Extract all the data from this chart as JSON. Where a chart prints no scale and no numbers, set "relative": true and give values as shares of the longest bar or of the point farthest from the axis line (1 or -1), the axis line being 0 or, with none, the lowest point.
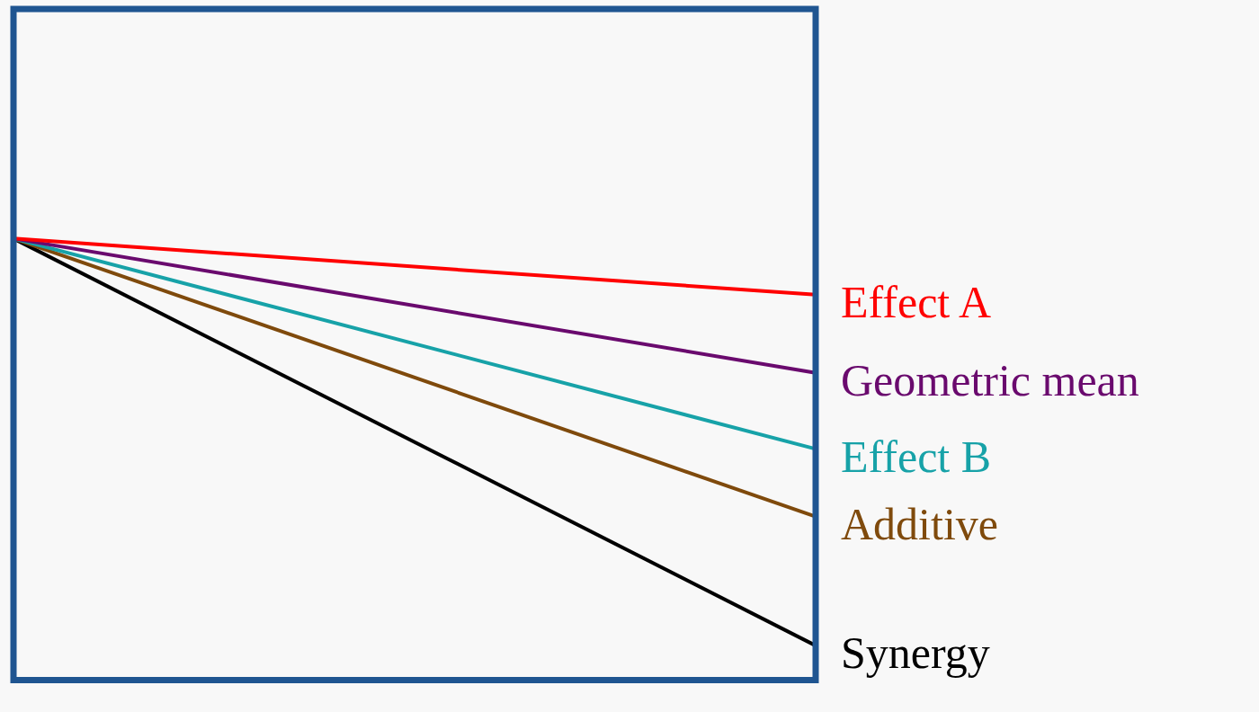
{
  "chart_data": {
    "type": "line",
    "relative": true,
    "categories": [
      null,
      null
    ],
    "legend": false,
    "marker": "none",
    "line_style": "solid",
    "series": [
      {
        "name": "Effect A",
        "color": "#ff0000",
        "values": [
          1,
          0.862
        ]
      },
      {
        "name": "Geometric mean",
        "color": "#6a0a6e",
        "values": [
          1,
          0.67
        ]
      },
      {
        "name": "Effect B",
        "color": "#17a2a8",
        "values": [
          1,
          0.483
        ]
      },
      {
        "name": "Additive",
        "color": "#7f4a0c",
        "values": [
          1,
          0.317
        ]
      },
      {
        "name": "Synergy",
        "color": "#000000",
        "values": [
          1,
          0
        ]
      }
    ]
  }
}
